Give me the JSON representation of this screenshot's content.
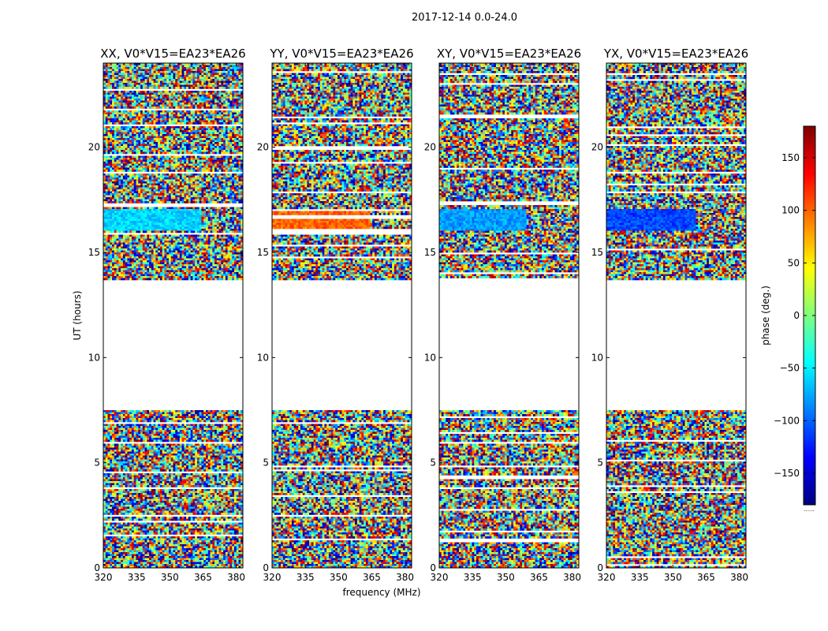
{
  "suptitle": "2017-12-14 0.0-24.0",
  "xlabel": "frequency (MHz)",
  "ylabel": "UT (hours)",
  "colorbar": {
    "label": "phase (deg.)",
    "range": [
      -180,
      180
    ],
    "ticks": [
      150,
      100,
      50,
      0,
      -50,
      -100,
      -150
    ],
    "tick_labels": [
      "150",
      "100",
      "50",
      "0",
      "−50",
      "−100",
      "−150"
    ],
    "colormap": "jet",
    "colors": [
      "#00007f",
      "#0000ff",
      "#007fff",
      "#00ffff",
      "#7fff7f",
      "#ffff00",
      "#ff7f00",
      "#ff0000",
      "#7f0000"
    ],
    "offset_text": "......"
  },
  "chart_data": [
    {
      "type": "heatmap",
      "title": "XX, V0*V15=EA23*EA26",
      "xlim": [
        320,
        383
      ],
      "ylim": [
        0,
        24
      ],
      "xticks": [
        320,
        335,
        350,
        365,
        380
      ],
      "yticks": [
        0,
        5,
        10,
        15,
        20
      ],
      "data_gap_hours": [
        7.5,
        13.7
      ],
      "smooth_phase_band": {
        "hours": [
          16.0,
          17.1
        ],
        "freq_until": 364,
        "phase_deg": -60
      },
      "noisy_phase": "uniform random -180 to 180 elsewhere"
    },
    {
      "type": "heatmap",
      "title": "YY, V0*V15=EA23*EA26",
      "xlim": [
        320,
        383
      ],
      "ylim": [
        0,
        24
      ],
      "xticks": [
        320,
        335,
        350,
        365,
        380
      ],
      "yticks": [
        0,
        5,
        10,
        15,
        20
      ],
      "data_gap_hours": [
        7.5,
        13.7
      ],
      "smooth_phase_band": {
        "hours": [
          16.0,
          17.1
        ],
        "freq_until": 364,
        "phase_deg": 100
      },
      "noisy_phase": "uniform random -180 to 180 elsewhere"
    },
    {
      "type": "heatmap",
      "title": "XY, V0*V15=EA23*EA26",
      "xlim": [
        320,
        383
      ],
      "ylim": [
        0,
        24
      ],
      "xticks": [
        320,
        335,
        350,
        365,
        380
      ],
      "yticks": [
        0,
        5,
        10,
        15,
        20
      ],
      "data_gap_hours": [
        7.5,
        13.7
      ],
      "smooth_phase_band": {
        "hours": [
          16.0,
          17.1
        ],
        "freq_until": 359,
        "phase_deg": -80
      },
      "noisy_phase": "uniform random -180 to 180 elsewhere"
    },
    {
      "type": "heatmap",
      "title": "YX, V0*V15=EA23*EA26",
      "xlim": [
        320,
        383
      ],
      "ylim": [
        0,
        24
      ],
      "xticks": [
        320,
        335,
        350,
        365,
        380
      ],
      "yticks": [
        0,
        5,
        10,
        15,
        20
      ],
      "data_gap_hours": [
        7.5,
        13.7
      ],
      "smooth_phase_band": {
        "hours": [
          16.0,
          17.1
        ],
        "freq_until": 360,
        "phase_deg": -110
      },
      "noisy_phase": "uniform random -180 to 180 elsewhere"
    }
  ]
}
